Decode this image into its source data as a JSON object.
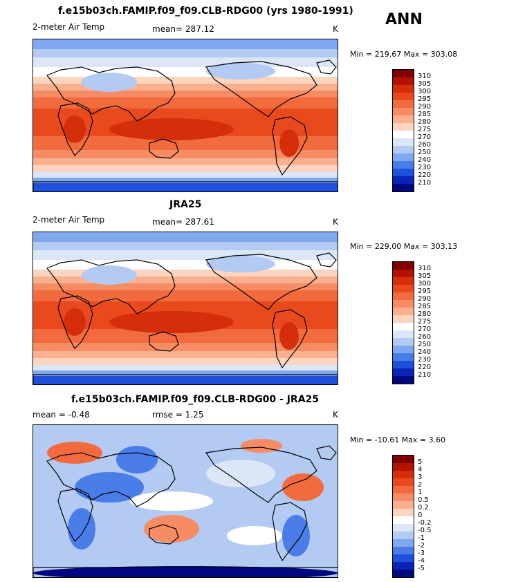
{
  "season": "ANN",
  "panels": [
    {
      "title": "f.e15b03ch.FAMIP.f09_f09.CLB-RDG00 (yrs 1980-1991)",
      "variable": "2-meter Air Temp",
      "stat_label": "mean=",
      "stat_value": "287.12",
      "units": "K",
      "minmax": "Min = 219.67 Max = 303.08",
      "legend_labels": [
        "310",
        "305",
        "300",
        "295",
        "290",
        "285",
        "280",
        "275",
        "270",
        "260",
        "250",
        "240",
        "230",
        "220",
        "210"
      ]
    },
    {
      "title": "JRA25",
      "variable": "2-meter Air Temp",
      "stat_label": "mean=",
      "stat_value": "287.61",
      "units": "K",
      "minmax": "Min = 229.00 Max = 303.13",
      "legend_labels": [
        "310",
        "305",
        "300",
        "295",
        "290",
        "285",
        "280",
        "275",
        "270",
        "260",
        "250",
        "240",
        "230",
        "220",
        "210"
      ]
    },
    {
      "title": "f.e15b03ch.FAMIP.f09_f09.CLB-RDG00 - JRA25",
      "mean_text": "mean =   -0.48",
      "rmse_text": "rmse =    1.25",
      "units": "K",
      "minmax": "Min = -10.61 Max =   3.60",
      "legend_labels": [
        "5",
        "4",
        "3",
        "2",
        "1",
        "0.5",
        "0.2",
        "0",
        "-0.2",
        "-0.5",
        "-1",
        "-2",
        "-3",
        "-4",
        "-5"
      ]
    }
  ],
  "colors": {
    "abs_scale": [
      "#7f0000",
      "#b31200",
      "#d42e0b",
      "#e84a1e",
      "#f26b3e",
      "#f68c63",
      "#f9b08f",
      "#fbd5c0",
      "#ffffff",
      "#dbe6f7",
      "#b3caf2",
      "#7fa8ee",
      "#4a7de8",
      "#1f50db",
      "#0a24b8",
      "#00087f"
    ],
    "diff_scale": [
      "#7f0000",
      "#b31200",
      "#d42e0b",
      "#e84a1e",
      "#f26b3e",
      "#f68c63",
      "#f9b08f",
      "#fbd5c0",
      "#ffffff",
      "#dbe6f7",
      "#b3caf2",
      "#7fa8ee",
      "#4a7de8",
      "#1f50db",
      "#0a24b8",
      "#00087f"
    ]
  }
}
